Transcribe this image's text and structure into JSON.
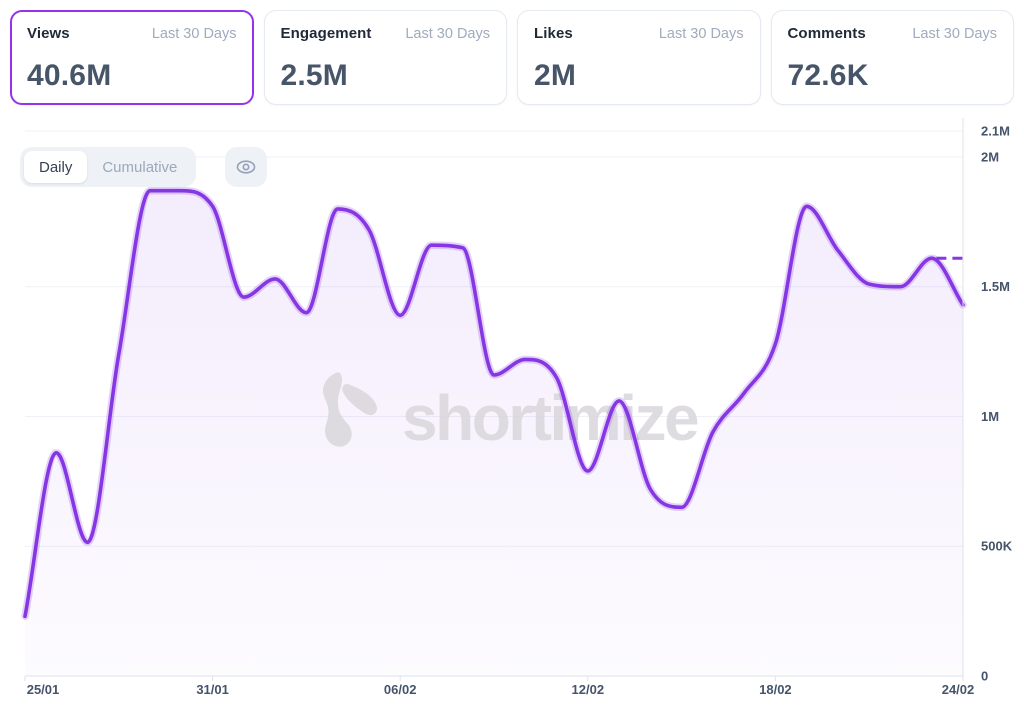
{
  "cards": [
    {
      "title": "Views",
      "period": "Last 30 Days",
      "value": "40.6M",
      "active": true
    },
    {
      "title": "Engagement",
      "period": "Last 30 Days",
      "value": "2.5M",
      "active": false
    },
    {
      "title": "Likes",
      "period": "Last 30 Days",
      "value": "2M",
      "active": false
    },
    {
      "title": "Comments",
      "period": "Last 30 Days",
      "value": "72.6K",
      "active": false
    }
  ],
  "toolbar": {
    "daily_label": "Daily",
    "cumulative_label": "Cumulative",
    "selected_mode": "Daily",
    "eye_icon": "visibility-toggle"
  },
  "watermark": {
    "logo_icon": "shortimize-logo",
    "text": "shortimize"
  },
  "colors": {
    "accent": "#8636E3",
    "accent_glow": "rgba(134,54,227,0.22)",
    "active_card_border": "#9333EA",
    "area_top": "rgba(134,54,227,0.10)",
    "area_bottom": "rgba(134,54,227,0.02)",
    "grid": "#EFF1F6",
    "axis": "#DDE3EA",
    "label": "#45546B",
    "muted": "#9CA8BC",
    "watermark": "#D9D7DC"
  },
  "chart_data": {
    "type": "area",
    "series_name": "Views",
    "mode": "Daily",
    "smoothing": "monotone",
    "grid": "horizontal",
    "legend": "none",
    "x": [
      "25/01",
      "26/01",
      "27/01",
      "28/01",
      "29/01",
      "30/01",
      "31/01",
      "01/02",
      "02/02",
      "03/02",
      "04/02",
      "05/02",
      "06/02",
      "07/02",
      "08/02",
      "09/02",
      "10/02",
      "11/02",
      "12/02",
      "13/02",
      "14/02",
      "15/02",
      "16/02",
      "17/02",
      "18/02",
      "19/02",
      "20/02",
      "21/02",
      "22/02",
      "23/02",
      "24/02"
    ],
    "values": [
      230000,
      860000,
      515000,
      1240000,
      1870000,
      1870000,
      1810000,
      1460000,
      1530000,
      1400000,
      1800000,
      1720000,
      1390000,
      1660000,
      1650000,
      1160000,
      1220000,
      1150000,
      790000,
      1060000,
      720000,
      650000,
      940000,
      1090000,
      1280000,
      1810000,
      1640000,
      1510000,
      1500000,
      1610000,
      1430000
    ],
    "ylim": [
      0,
      2100000
    ],
    "yticks": [
      {
        "value": 2100000,
        "label": "2.1M"
      },
      {
        "value": 2000000,
        "label": "2M"
      },
      {
        "value": 1500000,
        "label": "1.5M"
      },
      {
        "value": 1000000,
        "label": "1M"
      },
      {
        "value": 500000,
        "label": "500K"
      },
      {
        "value": 0,
        "label": "0"
      }
    ],
    "xticks": [
      {
        "index": 0,
        "label": "25/01"
      },
      {
        "index": 6,
        "label": "31/01"
      },
      {
        "index": 12,
        "label": "06/02"
      },
      {
        "index": 18,
        "label": "12/02"
      },
      {
        "index": 24,
        "label": "18/02"
      },
      {
        "index": 30,
        "label": "24/02"
      }
    ],
    "dashed_reference": {
      "value": 1610000,
      "start_index": 29.15
    }
  }
}
